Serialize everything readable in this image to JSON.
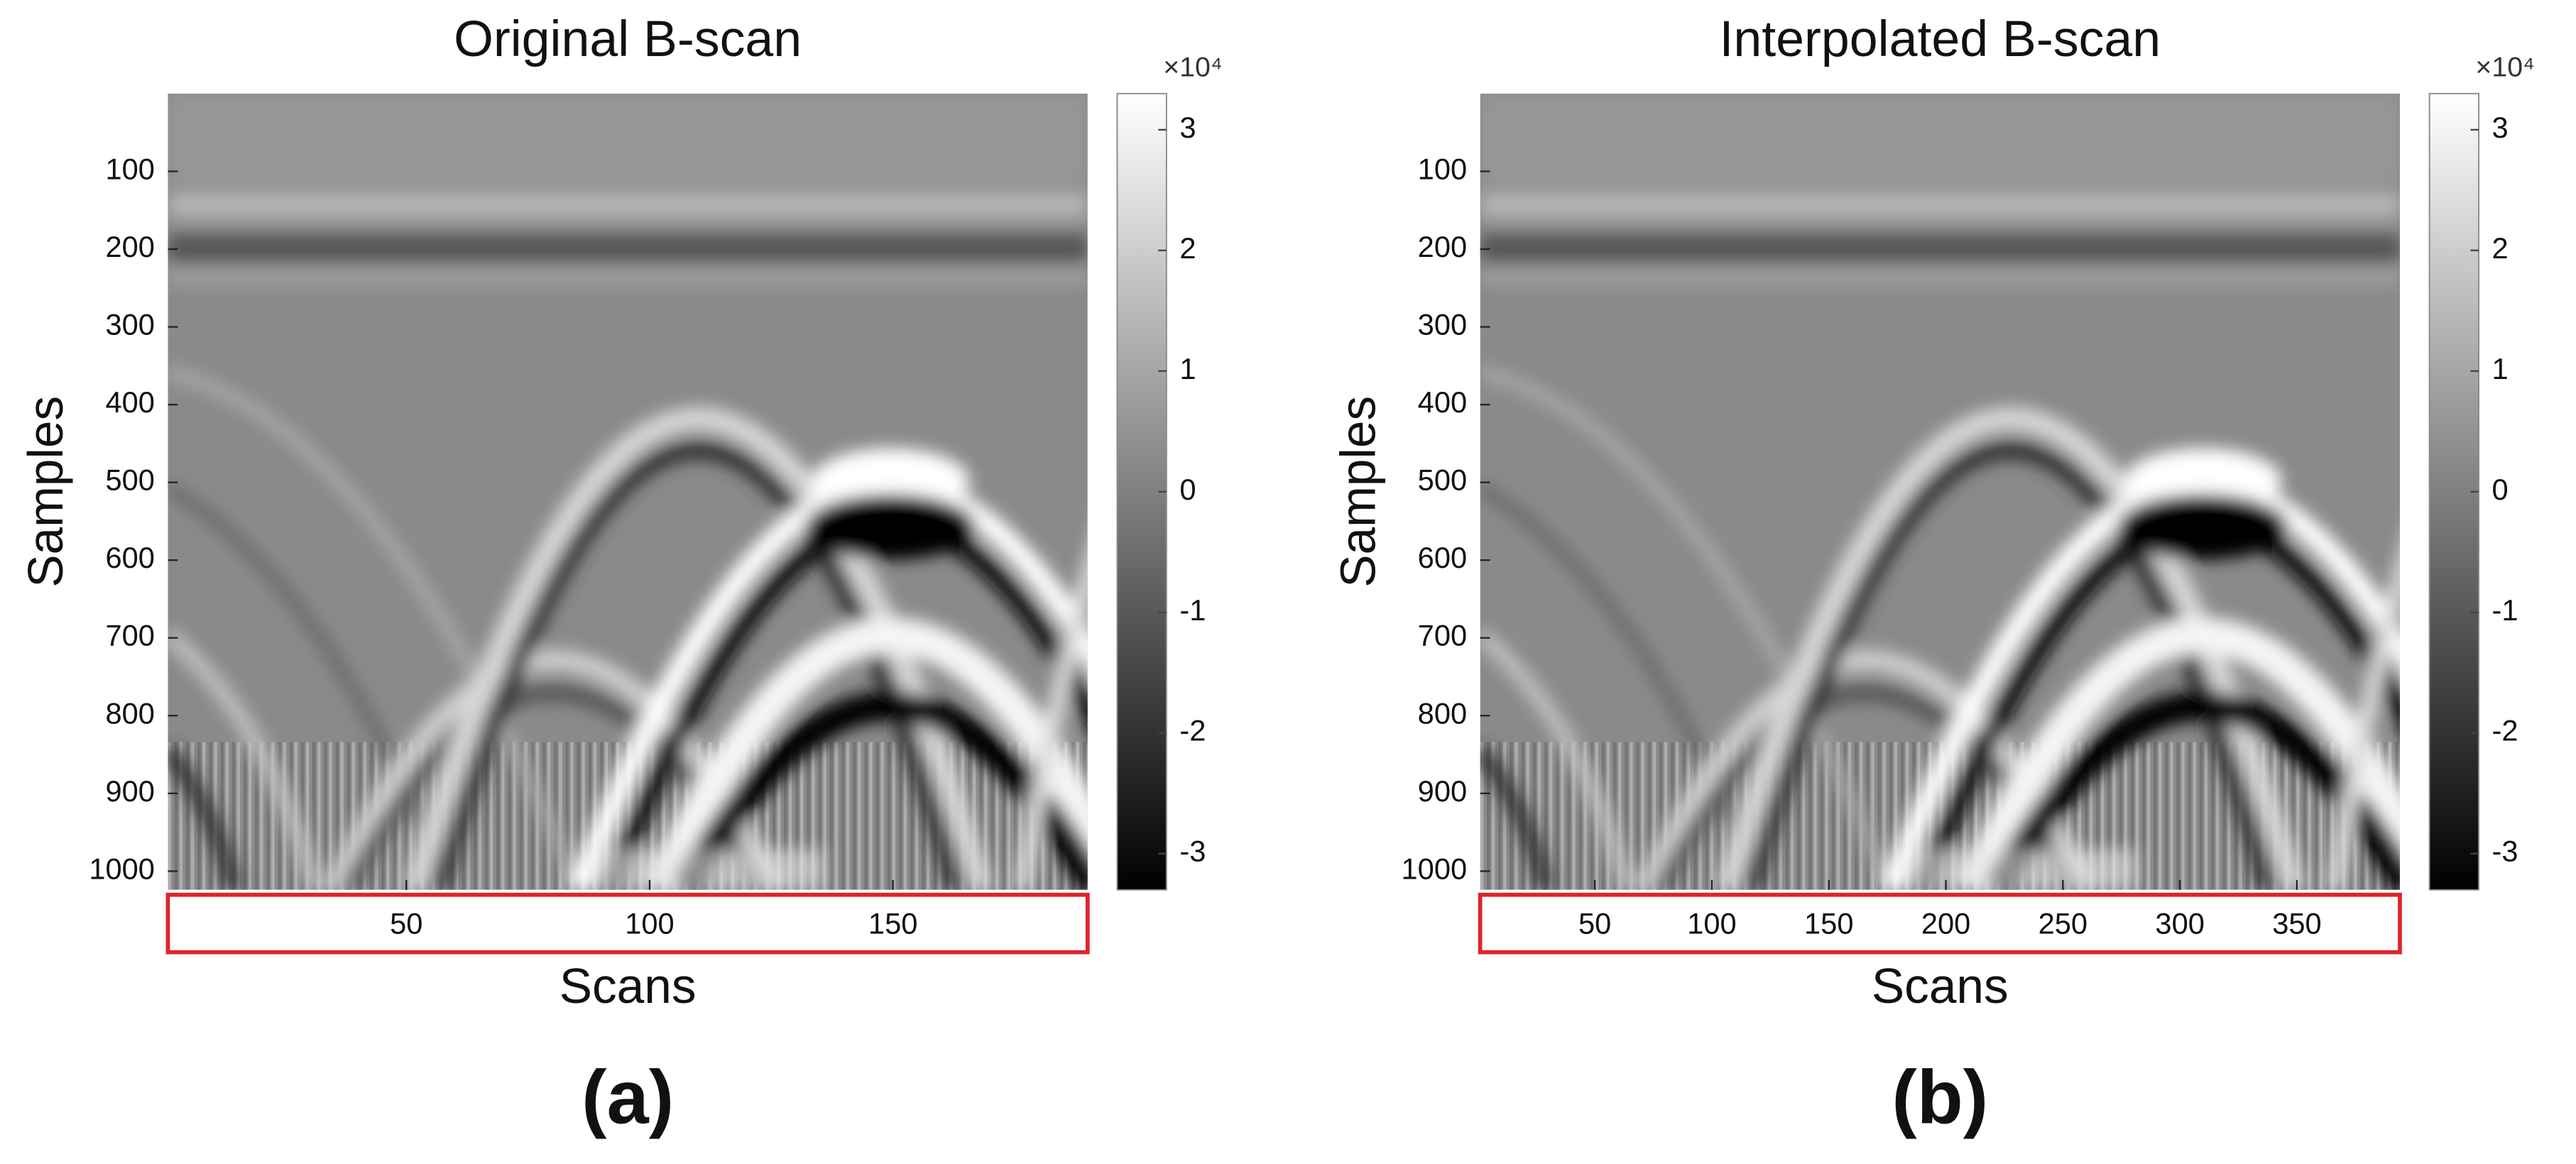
{
  "chart_data": [
    {
      "type": "heatmap",
      "title": "Original B-scan",
      "xlabel": "Scans",
      "ylabel": "Samples",
      "colormap": "gray",
      "xlim": [
        1,
        190
      ],
      "xticks": [
        50,
        100,
        150
      ],
      "ylim": [
        0,
        1024
      ],
      "yreverse": true,
      "yticks": [
        100,
        200,
        300,
        400,
        500,
        600,
        700,
        800,
        900,
        1000
      ],
      "colorbar": {
        "clim": [
          -3.3,
          3.3
        ],
        "ticks": [
          -3,
          -2,
          -1,
          0,
          1,
          2,
          3
        ],
        "exponent": "×10⁴"
      },
      "panel_label": "(a)"
    },
    {
      "type": "heatmap",
      "title": "Interpolated B-scan",
      "xlabel": "Scans",
      "ylabel": "Samples",
      "colormap": "gray",
      "xlim": [
        1,
        394
      ],
      "xticks": [
        50,
        100,
        150,
        200,
        250,
        300,
        350
      ],
      "ylim": [
        0,
        1024
      ],
      "yreverse": true,
      "yticks": [
        100,
        200,
        300,
        400,
        500,
        600,
        700,
        800,
        900,
        1000
      ],
      "colorbar": {
        "clim": [
          -3.3,
          3.3
        ],
        "ticks": [
          -3,
          -2,
          -1,
          0,
          1,
          2,
          3
        ],
        "exponent": "×10⁴"
      },
      "panel_label": "(b)"
    }
  ]
}
